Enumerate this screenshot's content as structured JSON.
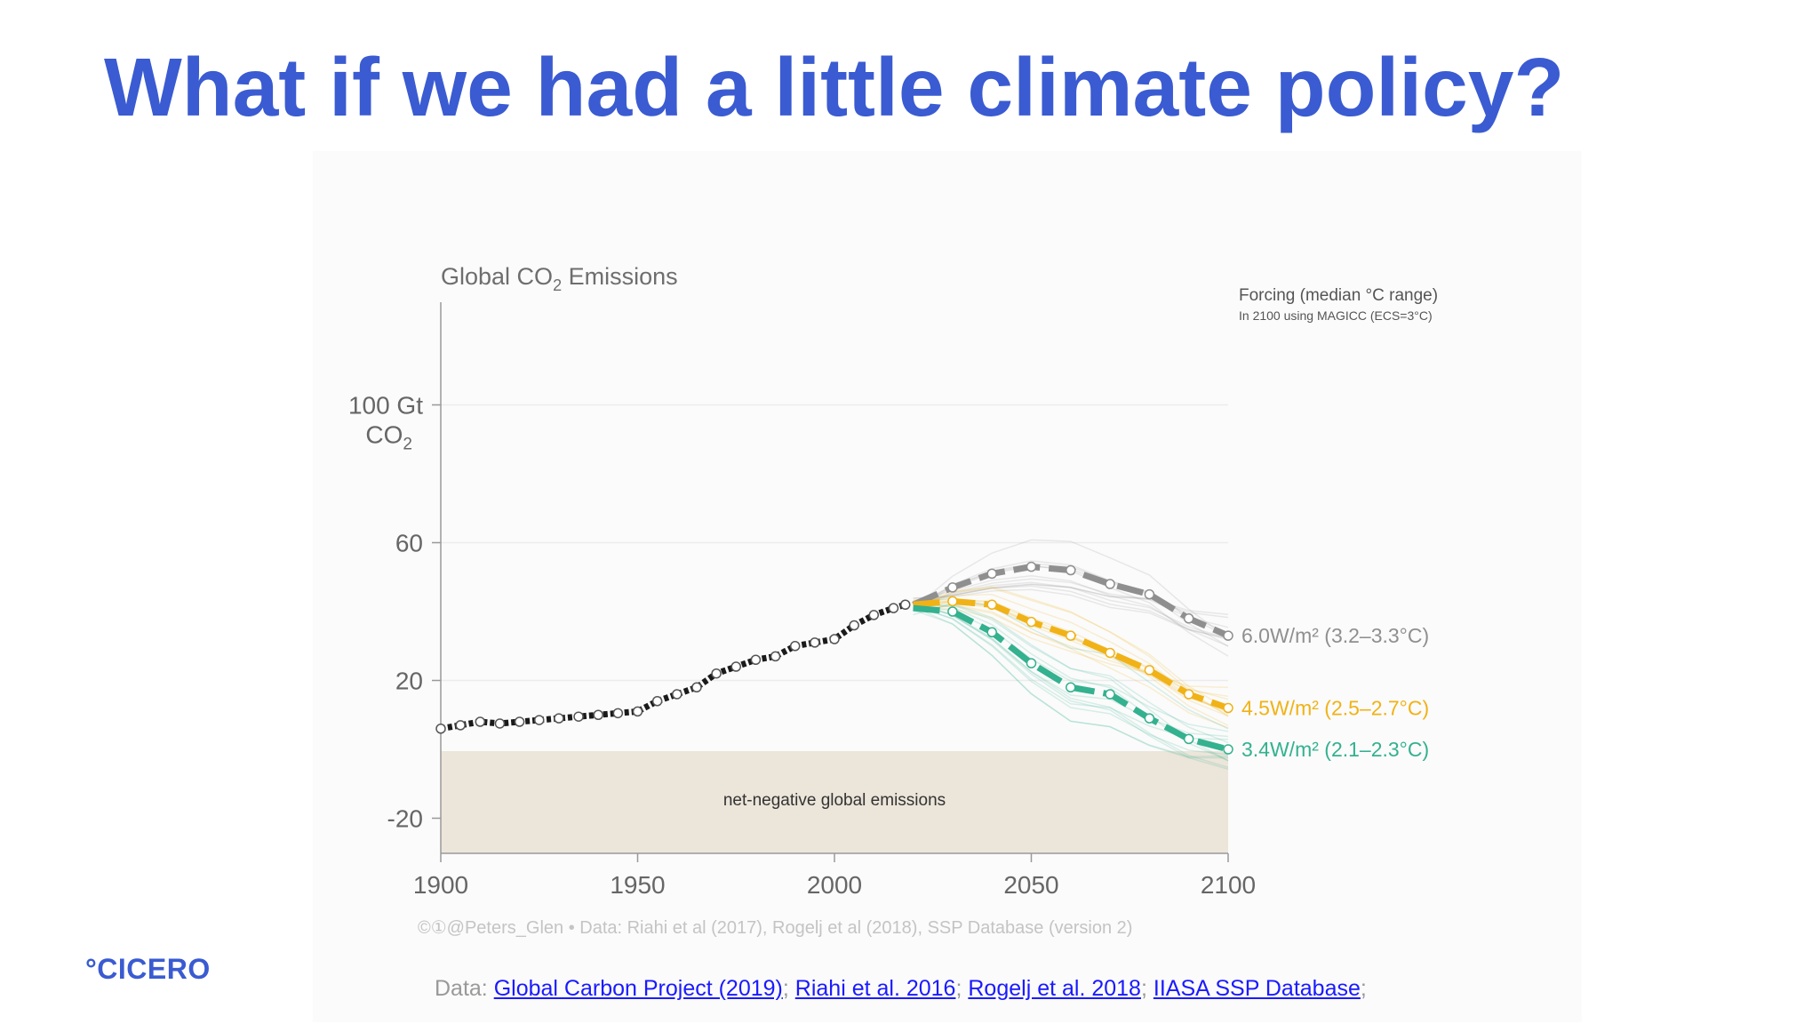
{
  "slide": {
    "title": "What if we had a little climate policy?",
    "logo": "°CICERO"
  },
  "sources": {
    "prefix": "Data: ",
    "links": [
      "Global Carbon Project (2019)",
      "Riahi et al. 2016",
      "Rogelj et al. 2018",
      "IIASA SSP Database"
    ],
    "separator": "; ",
    "suffix": ";"
  },
  "chart_data": {
    "type": "line",
    "title_main": "Global CO",
    "title_sub": "2",
    "title_rest": " Emissions",
    "ylabel_top": "100 Gt",
    "ylabel_unit_main": "CO",
    "ylabel_unit_sub": "2",
    "yticks": [
      "60",
      "20",
      "-20"
    ],
    "ytick_values": [
      60,
      20,
      -20
    ],
    "ylabel_value": 100,
    "xticks": [
      "1900",
      "1950",
      "2000",
      "2050",
      "2100"
    ],
    "xtick_values": [
      1900,
      1950,
      2000,
      2050,
      2100
    ],
    "xlim": [
      1900,
      2100
    ],
    "ylim": [
      -30,
      120
    ],
    "grid": true,
    "negative_region": {
      "label": "net-negative global emissions",
      "from": 0,
      "to": -30
    },
    "legend_title": "Forcing (median °C range)",
    "legend_subtitle": "In 2100 using MAGICC (ECS=3°C)",
    "credit": "©①@Peters_Glen  •  Data: Riahi et al (2017), Rogelj et al (2018), SSP Database (version 2)",
    "historical": {
      "color": "#1a1a1a",
      "x": [
        1900,
        1905,
        1910,
        1915,
        1920,
        1925,
        1930,
        1935,
        1940,
        1945,
        1950,
        1955,
        1960,
        1965,
        1970,
        1975,
        1980,
        1985,
        1990,
        1995,
        2000,
        2005,
        2010,
        2015,
        2018
      ],
      "y": [
        6.0,
        7.0,
        8.0,
        7.5,
        8.0,
        8.5,
        9.0,
        9.5,
        10.0,
        10.5,
        11.0,
        14.0,
        16.0,
        18.0,
        22.0,
        24.0,
        26.0,
        27.0,
        30.0,
        31.0,
        32.0,
        36.0,
        39.0,
        41.0,
        42.0
      ]
    },
    "series": [
      {
        "name": "6.0W/m² (3.2–3.3°C)",
        "color": "#8f8f8f",
        "x": [
          2020,
          2030,
          2040,
          2050,
          2060,
          2070,
          2080,
          2090,
          2100
        ],
        "y": [
          42,
          47,
          51,
          53,
          52,
          48,
          45,
          38,
          33
        ]
      },
      {
        "name": "4.5W/m² (2.5–2.7°C)",
        "color": "#f0b216",
        "x": [
          2020,
          2030,
          2040,
          2050,
          2060,
          2070,
          2080,
          2090,
          2100
        ],
        "y": [
          42,
          43,
          42,
          37,
          33,
          28,
          23,
          16,
          12
        ]
      },
      {
        "name": "3.4W/m² (2.1–2.3°C)",
        "color": "#34b18f",
        "x": [
          2020,
          2030,
          2040,
          2050,
          2060,
          2070,
          2080,
          2090,
          2100
        ],
        "y": [
          41,
          40,
          34,
          25,
          18,
          16,
          9,
          3,
          0
        ]
      }
    ]
  }
}
